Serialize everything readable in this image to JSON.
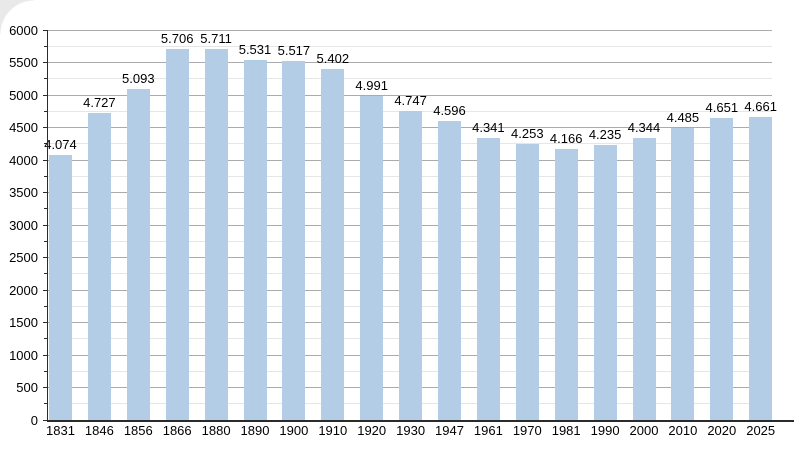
{
  "chart_data": {
    "type": "bar",
    "title": "",
    "xlabel": "",
    "ylabel": "",
    "categories": [
      "1831",
      "1846",
      "1856",
      "1866",
      "1880",
      "1890",
      "1900",
      "1910",
      "1920",
      "1930",
      "1947",
      "1961",
      "1970",
      "1981",
      "1990",
      "2000",
      "2010",
      "2020",
      "2025"
    ],
    "values": [
      4074,
      4727,
      5093,
      5706,
      5711,
      5531,
      5517,
      5402,
      4991,
      4747,
      4596,
      4341,
      4253,
      4166,
      4235,
      4344,
      4485,
      4651,
      4661
    ],
    "bar_labels": [
      "4.074",
      "4.727",
      "5.093",
      "5.706",
      "5.711",
      "5.531",
      "5.517",
      "5.402",
      "4.991",
      "4.747",
      "4.596",
      "4.341",
      "4.253",
      "4.166",
      "4.235",
      "4.344",
      "4.485",
      "4.651",
      "4.661"
    ],
    "ylim": [
      0,
      6000
    ],
    "y_major_step": 500,
    "y_minor_step": 250,
    "y_tick_labels": [
      "0",
      "500",
      "1000",
      "1500",
      "2000",
      "2500",
      "3000",
      "3500",
      "4000",
      "4500",
      "5000",
      "5500",
      "6000"
    ],
    "grid": true,
    "legend_position": "none",
    "colors": {
      "bar_fill": "#b4cde6",
      "grid_major": "#ababab",
      "grid_minor": "#e6e6e6",
      "axis": "#2b2b2b",
      "text": "#000000",
      "background": "#ffffff",
      "corner_shade": "#e9e9e9"
    }
  }
}
